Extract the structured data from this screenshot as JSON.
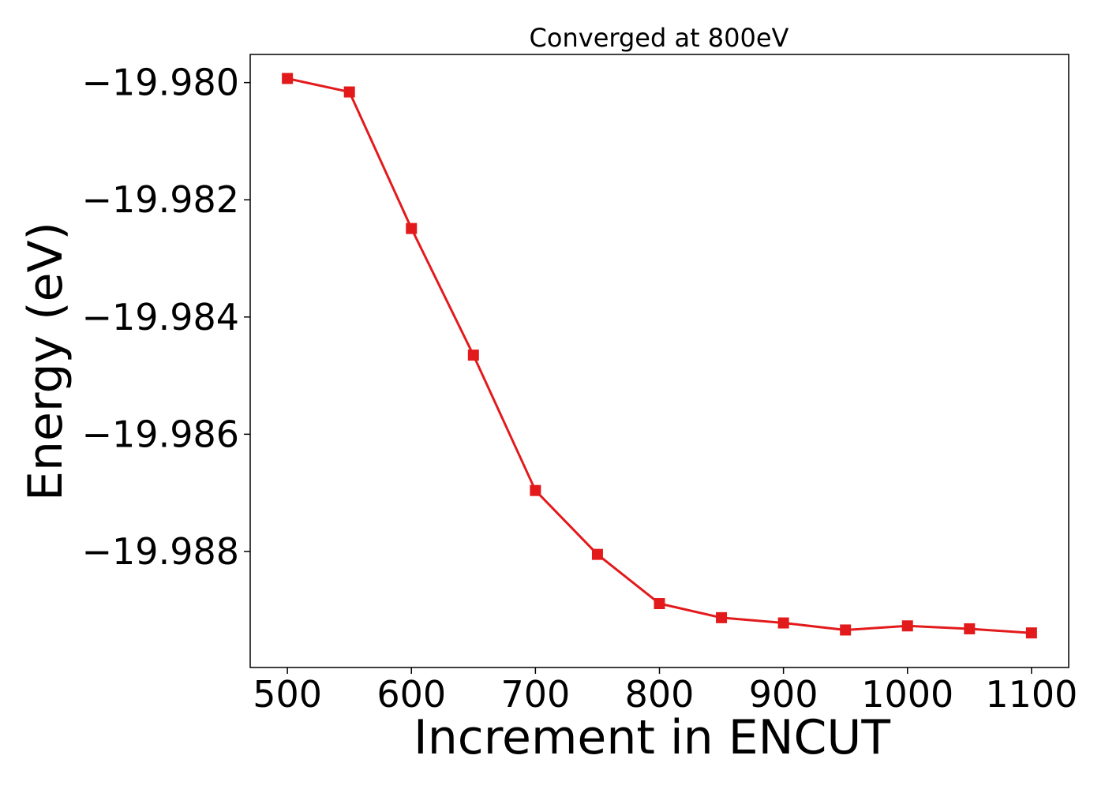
{
  "chart_data": {
    "type": "line",
    "title": "Converged at 800eV",
    "xlabel": "Increment in ENCUT",
    "ylabel": "Energy (eV)",
    "x": [
      500,
      550,
      600,
      650,
      700,
      750,
      800,
      850,
      900,
      950,
      1000,
      1050,
      1100
    ],
    "series": [
      {
        "values": [
          -19.97993,
          -19.98016,
          -19.98249,
          -19.98465,
          -19.98696,
          -19.98805,
          -19.98889,
          -19.98913,
          -19.98922,
          -19.98934,
          -19.98927,
          -19.98932,
          -19.98939
        ],
        "color": "#e31a1c",
        "marker": "square"
      }
    ],
    "xlim": [
      470,
      1130
    ],
    "ylim": [
      -19.98998,
      -19.97952
    ],
    "xticks": [
      500,
      600,
      700,
      800,
      900,
      1000,
      1100
    ],
    "xtick_labels": [
      "500",
      "600",
      "700",
      "800",
      "900",
      "1000",
      "1100"
    ],
    "yticks": [
      -19.98,
      -19.982,
      -19.984,
      -19.986,
      -19.988
    ],
    "ytick_labels": [
      "−19.980",
      "−19.982",
      "−19.984",
      "−19.986",
      "−19.988"
    ],
    "grid": false,
    "legend": "none"
  }
}
